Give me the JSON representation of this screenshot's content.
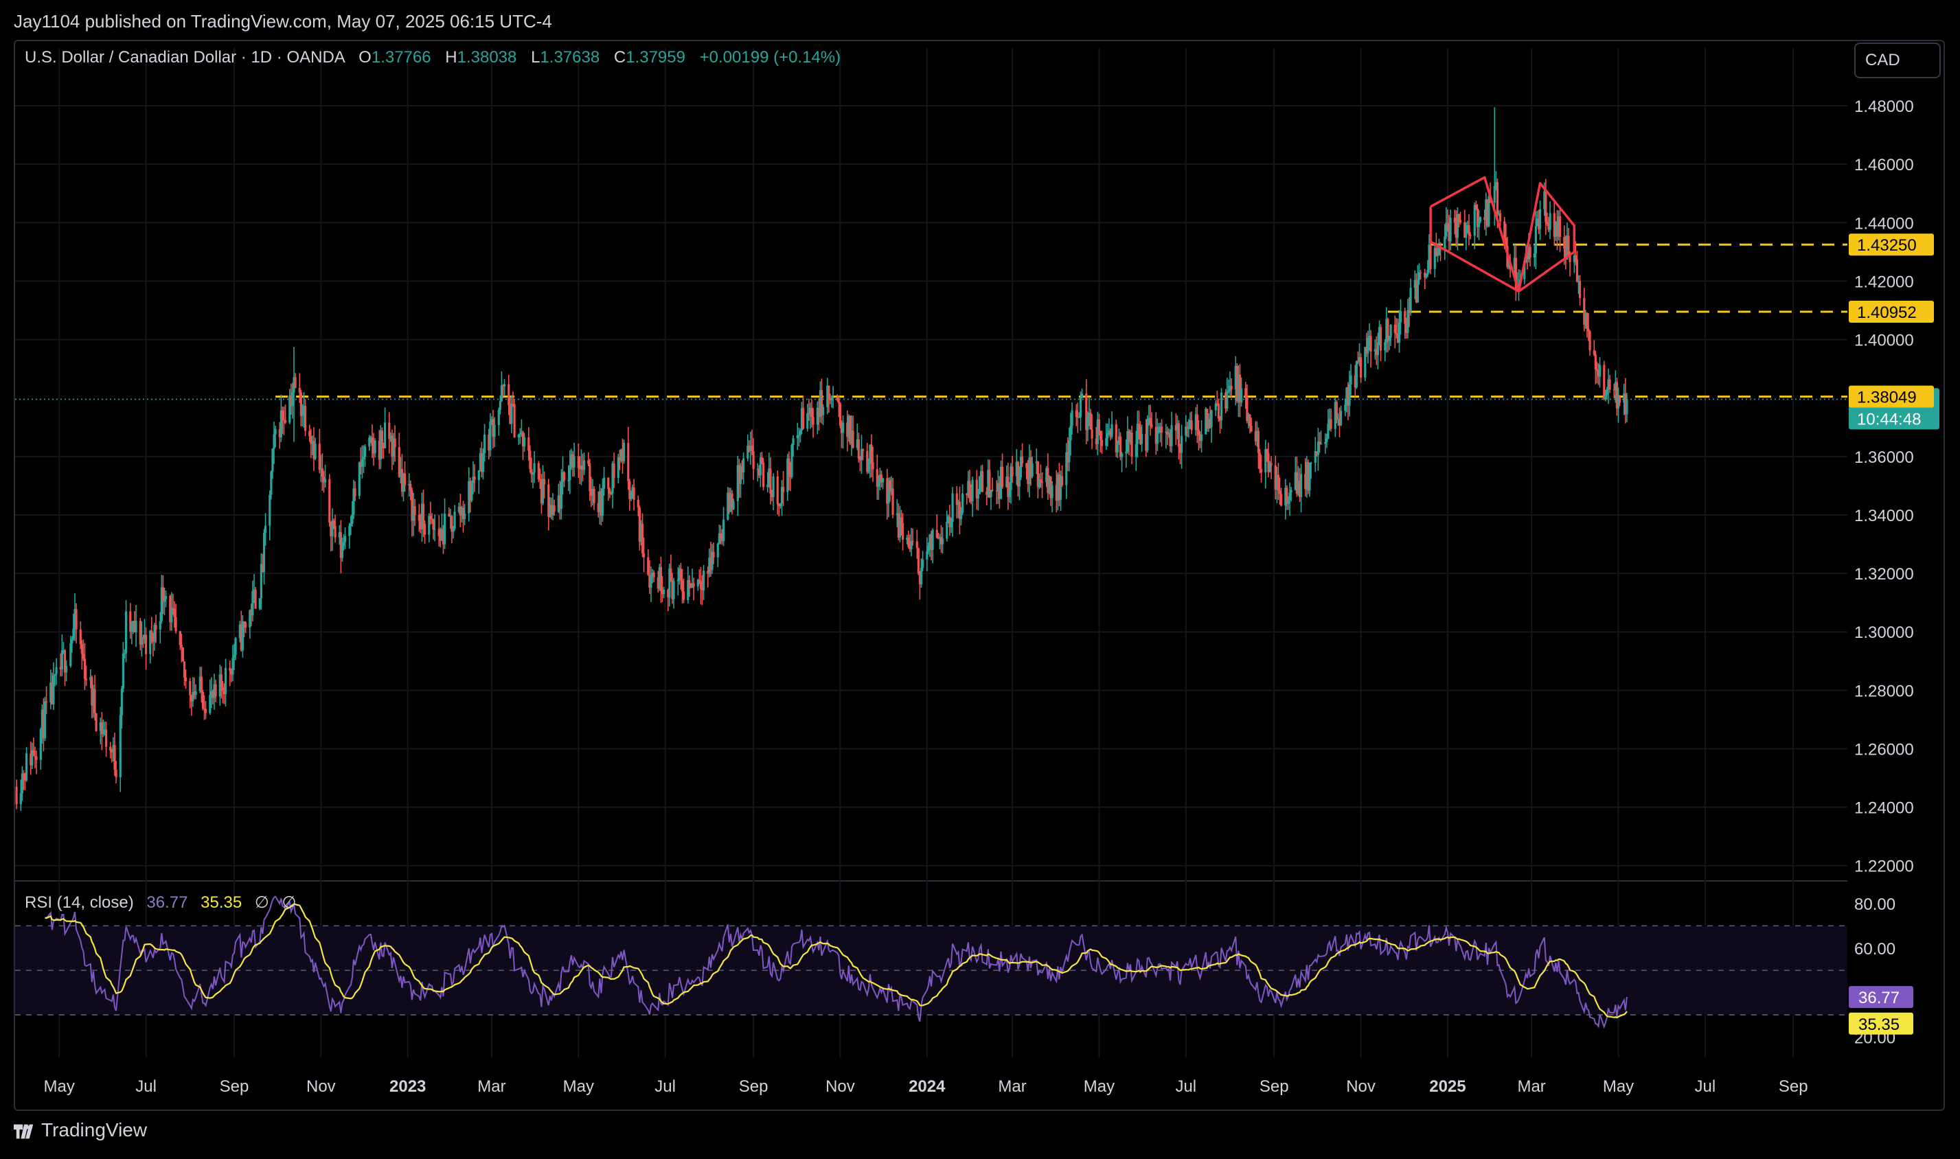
{
  "header": {
    "published": "Jay1104 published on TradingView.com, May 07, 2025 06:15 UTC-4"
  },
  "legend": {
    "symbol": "U.S. Dollar / Canadian Dollar · 1D · OANDA",
    "o_label": "O",
    "o_value": "1.37766",
    "h_label": "H",
    "h_value": "1.38038",
    "l_label": "L",
    "l_value": "1.37638",
    "c_label": "C",
    "c_value": "1.37959",
    "change": "+0.00199 (+0.14%)"
  },
  "currency_button": "CAD",
  "rsi_legend": {
    "label": "RSI (14, close)",
    "rsi": "36.77",
    "ma": "35.35",
    "n1": "∅",
    "n2": "∅"
  },
  "footer": {
    "brand": "TradingView"
  },
  "colors": {
    "up": "#26a69a",
    "down": "#ef5350",
    "level": "#f5c518",
    "pattern": "#f23645",
    "rsi": "#7e57c2",
    "rsi_ma": "#f5e642"
  },
  "chart_data": [
    {
      "type": "candlestick",
      "ylim": [
        1.215,
        1.488
      ],
      "y_ticks": [
        "1.48000",
        "1.46000",
        "1.44000",
        "1.42000",
        "1.40000",
        "1.36000",
        "1.34000",
        "1.32000",
        "1.30000",
        "1.28000",
        "1.26000",
        "1.24000",
        "1.22000"
      ],
      "x_ticks": [
        {
          "label": "May",
          "date": "2022-05-01",
          "bold": false
        },
        {
          "label": "Jul",
          "date": "2022-07-01",
          "bold": false
        },
        {
          "label": "Sep",
          "date": "2022-09-01",
          "bold": false
        },
        {
          "label": "Nov",
          "date": "2022-11-01",
          "bold": false
        },
        {
          "label": "2023",
          "date": "2023-01-01",
          "bold": true
        },
        {
          "label": "Mar",
          "date": "2023-03-01",
          "bold": false
        },
        {
          "label": "May",
          "date": "2023-05-01",
          "bold": false
        },
        {
          "label": "Jul",
          "date": "2023-07-01",
          "bold": false
        },
        {
          "label": "Sep",
          "date": "2023-09-01",
          "bold": false
        },
        {
          "label": "Nov",
          "date": "2023-11-01",
          "bold": false
        },
        {
          "label": "2024",
          "date": "2024-01-01",
          "bold": true
        },
        {
          "label": "Mar",
          "date": "2024-03-01",
          "bold": false
        },
        {
          "label": "May",
          "date": "2024-05-01",
          "bold": false
        },
        {
          "label": "Jul",
          "date": "2024-07-01",
          "bold": false
        },
        {
          "label": "Sep",
          "date": "2024-09-01",
          "bold": false
        },
        {
          "label": "Nov",
          "date": "2024-11-01",
          "bold": false
        },
        {
          "label": "2025",
          "date": "2025-01-01",
          "bold": true
        },
        {
          "label": "Mar",
          "date": "2025-03-01",
          "bold": false
        },
        {
          "label": "May",
          "date": "2025-05-01",
          "bold": false
        },
        {
          "label": "Jul",
          "date": "2025-07-01",
          "bold": false
        },
        {
          "label": "Sep",
          "date": "2025-09-01",
          "bold": false
        }
      ],
      "close_path": [
        [
          "2022-04-01",
          1.247
        ],
        [
          "2022-04-15",
          1.262
        ],
        [
          "2022-04-30",
          1.284
        ],
        [
          "2022-05-12",
          1.302
        ],
        [
          "2022-05-27",
          1.272
        ],
        [
          "2022-06-10",
          1.255
        ],
        [
          "2022-06-17",
          1.302
        ],
        [
          "2022-07-05",
          1.296
        ],
        [
          "2022-07-14",
          1.316
        ],
        [
          "2022-07-29",
          1.282
        ],
        [
          "2022-08-19",
          1.276
        ],
        [
          "2022-09-07",
          1.3
        ],
        [
          "2022-09-20",
          1.318
        ],
        [
          "2022-09-30",
          1.368
        ],
        [
          "2022-10-13",
          1.384
        ],
        [
          "2022-10-24",
          1.371
        ],
        [
          "2022-11-07",
          1.34
        ],
        [
          "2022-11-15",
          1.328
        ],
        [
          "2022-12-01",
          1.36
        ],
        [
          "2022-12-19",
          1.367
        ],
        [
          "2023-01-06",
          1.34
        ],
        [
          "2023-01-24",
          1.333
        ],
        [
          "2023-02-10",
          1.343
        ],
        [
          "2023-03-09",
          1.382
        ],
        [
          "2023-03-28",
          1.358
        ],
        [
          "2023-04-13",
          1.338
        ],
        [
          "2023-04-28",
          1.362
        ],
        [
          "2023-05-16",
          1.344
        ],
        [
          "2023-06-01",
          1.362
        ],
        [
          "2023-06-20",
          1.32
        ],
        [
          "2023-07-14",
          1.315
        ],
        [
          "2023-08-01",
          1.322
        ],
        [
          "2023-08-15",
          1.344
        ],
        [
          "2023-08-28",
          1.36
        ],
        [
          "2023-09-20",
          1.346
        ],
        [
          "2023-10-05",
          1.372
        ],
        [
          "2023-10-24",
          1.38
        ],
        [
          "2023-11-07",
          1.368
        ],
        [
          "2023-11-28",
          1.355
        ],
        [
          "2023-12-12",
          1.337
        ],
        [
          "2023-12-27",
          1.322
        ],
        [
          "2024-01-17",
          1.341
        ],
        [
          "2024-02-06",
          1.35
        ],
        [
          "2024-02-27",
          1.352
        ],
        [
          "2024-03-15",
          1.356
        ],
        [
          "2024-04-02",
          1.348
        ],
        [
          "2024-04-16",
          1.379
        ],
        [
          "2024-05-01",
          1.366
        ],
        [
          "2024-05-21",
          1.364
        ],
        [
          "2024-06-11",
          1.37
        ],
        [
          "2024-06-28",
          1.366
        ],
        [
          "2024-07-15",
          1.372
        ],
        [
          "2024-08-05",
          1.385
        ],
        [
          "2024-08-20",
          1.363
        ],
        [
          "2024-09-05",
          1.346
        ],
        [
          "2024-09-25",
          1.354
        ],
        [
          "2024-10-15",
          1.374
        ],
        [
          "2024-10-30",
          1.389
        ],
        [
          "2024-11-15",
          1.402
        ],
        [
          "2024-12-01",
          1.405
        ],
        [
          "2024-12-16",
          1.427
        ],
        [
          "2024-12-31",
          1.438
        ],
        [
          "2025-01-15",
          1.439
        ],
        [
          "2025-01-28",
          1.442
        ],
        [
          "2025-02-03",
          1.451
        ],
        [
          "2025-02-14",
          1.421
        ],
        [
          "2025-02-28",
          1.427
        ],
        [
          "2025-03-10",
          1.445
        ],
        [
          "2025-03-24",
          1.433
        ],
        [
          "2025-04-02",
          1.422
        ],
        [
          "2025-04-08",
          1.405
        ],
        [
          "2025-04-16",
          1.387
        ],
        [
          "2025-04-28",
          1.382
        ],
        [
          "2025-05-07",
          1.37959
        ]
      ],
      "spikes": [
        [
          "2025-02-03",
          1.4795,
          1.439
        ],
        [
          "2022-10-13",
          1.3975,
          1.365
        ]
      ],
      "levels": [
        {
          "value": 1.4325,
          "label": "1.43250",
          "from": "2024-12-20"
        },
        {
          "value": 1.40952,
          "label": "1.40952",
          "from": "2024-11-20"
        },
        {
          "value": 1.38049,
          "label": "1.38049",
          "from": "2022-09-30"
        }
      ],
      "last_price": {
        "value": 1.37959,
        "label": "1.37959",
        "countdown": "10:44:48"
      },
      "pattern": [
        [
          [
            "2024-12-20",
            1.4455
          ],
          [
            "2025-01-27",
            1.4555
          ],
          [
            "2025-02-20",
            1.4165
          ],
          [
            "2024-12-20",
            1.4335
          ],
          [
            "2024-12-20",
            1.4455
          ]
        ],
        [
          [
            "2025-02-20",
            1.4165
          ],
          [
            "2025-03-07",
            1.4535
          ],
          [
            "2025-03-31",
            1.439
          ],
          [
            "2025-03-31",
            1.43
          ],
          [
            "2025-02-20",
            1.4165
          ]
        ]
      ]
    },
    {
      "type": "line",
      "title": "RSI (14, close)",
      "ylim": [
        14,
        88
      ],
      "y_ticks": [
        "80.00",
        "60.00",
        "20.00"
      ],
      "bands": [
        70,
        50,
        30
      ],
      "series": [
        {
          "name": "RSI",
          "current": 36.77,
          "label": "36.77"
        },
        {
          "name": "MA",
          "current": 35.35,
          "label": "35.35"
        }
      ]
    }
  ]
}
